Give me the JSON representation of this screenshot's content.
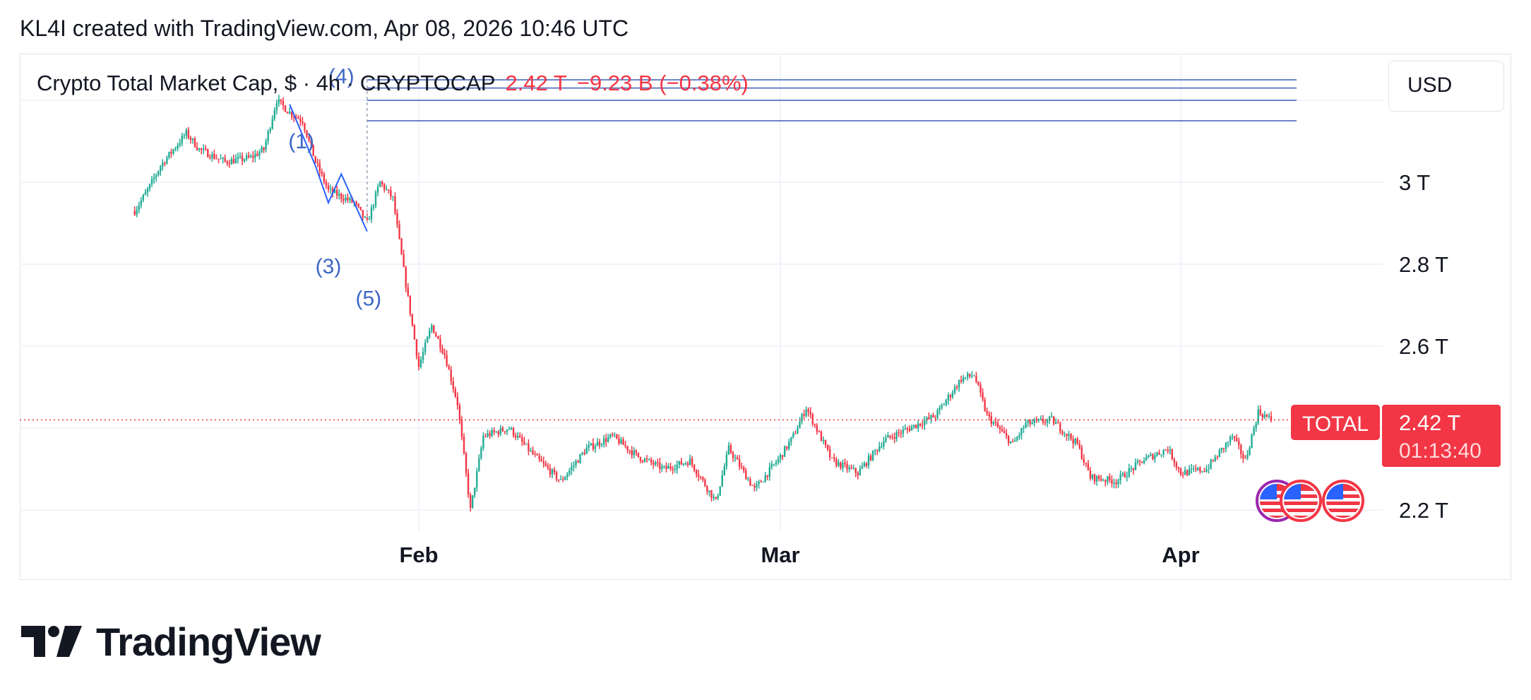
{
  "header": {
    "text": "KL4I created with TradingView.com, Apr 08, 2026 10:46 UTC"
  },
  "legend": {
    "title": "Crypto Total Market Cap, $ · 4h · CRYPTOCAP",
    "last": "2.42 T",
    "change": "−9.23 B (−0.38%)"
  },
  "currency_button": {
    "label": "USD"
  },
  "price_tag": {
    "symbol": "TOTAL",
    "price": "2.42 T",
    "countdown": "01:13:40"
  },
  "brand": {
    "name": "TradingView"
  },
  "colors": {
    "up": "#22ab94",
    "down": "#f23645",
    "wave": "#2962ff",
    "grid": "#f0f3fa",
    "text": "#131722"
  },
  "icons": [
    "us-flag-icon",
    "us-flag-icon",
    "us-flag-icon",
    "tradingview-logo-icon"
  ],
  "chart_data": {
    "type": "candlestick",
    "timeframe": "4h",
    "y_axis": {
      "ticks": [
        2.2,
        2.6,
        2.8,
        3.0
      ],
      "tick_labels": [
        "2.2 T",
        "2.6 T",
        "2.8 T",
        "3 T"
      ],
      "unit": "T",
      "range": [
        2.17,
        3.2
      ]
    },
    "x_axis": {
      "tick_labels": [
        "Feb",
        "Mar",
        "Apr"
      ],
      "ticks": [
        "2026-02-01",
        "2026-03-01",
        "2026-04-01"
      ]
    },
    "last_price": 2.42,
    "path_anchors": [
      [
        "2026-01-10",
        2.93
      ],
      [
        "2026-01-11",
        2.98
      ],
      [
        "2026-01-12",
        3.04
      ],
      [
        "2026-01-14",
        3.12
      ],
      [
        "2026-01-15",
        3.08
      ],
      [
        "2026-01-17",
        3.05
      ],
      [
        "2026-01-19",
        3.06
      ],
      [
        "2026-01-20",
        3.08
      ],
      [
        "2026-01-21",
        3.2
      ],
      [
        "2026-01-22",
        3.17
      ],
      [
        "2026-01-23",
        3.15
      ],
      [
        "2026-01-24",
        3.05
      ],
      [
        "2026-01-25",
        2.98
      ],
      [
        "2026-01-27",
        2.95
      ],
      [
        "2026-01-28",
        2.9
      ],
      [
        "2026-01-29",
        3.0
      ],
      [
        "2026-01-30",
        2.96
      ],
      [
        "2026-01-31",
        2.75
      ],
      [
        "2026-02-01",
        2.55
      ],
      [
        "2026-02-02",
        2.65
      ],
      [
        "2026-02-03",
        2.58
      ],
      [
        "2026-02-04",
        2.46
      ],
      [
        "2026-02-05",
        2.2
      ],
      [
        "2026-02-06",
        2.38
      ],
      [
        "2026-02-08",
        2.4
      ],
      [
        "2026-02-10",
        2.33
      ],
      [
        "2026-02-12",
        2.27
      ],
      [
        "2026-02-14",
        2.35
      ],
      [
        "2026-02-16",
        2.38
      ],
      [
        "2026-02-18",
        2.33
      ],
      [
        "2026-02-20",
        2.3
      ],
      [
        "2026-02-22",
        2.32
      ],
      [
        "2026-02-24",
        2.22
      ],
      [
        "2026-02-25",
        2.35
      ],
      [
        "2026-02-27",
        2.25
      ],
      [
        "2026-03-01",
        2.33
      ],
      [
        "2026-03-02",
        2.38
      ],
      [
        "2026-03-03",
        2.45
      ],
      [
        "2026-03-05",
        2.32
      ],
      [
        "2026-03-07",
        2.29
      ],
      [
        "2026-03-09",
        2.37
      ],
      [
        "2026-03-11",
        2.4
      ],
      [
        "2026-03-13",
        2.43
      ],
      [
        "2026-03-15",
        2.52
      ],
      [
        "2026-03-16",
        2.53
      ],
      [
        "2026-03-17",
        2.43
      ],
      [
        "2026-03-19",
        2.36
      ],
      [
        "2026-03-20",
        2.41
      ],
      [
        "2026-03-22",
        2.42
      ],
      [
        "2026-03-24",
        2.36
      ],
      [
        "2026-03-25",
        2.28
      ],
      [
        "2026-03-27",
        2.27
      ],
      [
        "2026-03-29",
        2.32
      ],
      [
        "2026-03-31",
        2.35
      ],
      [
        "2026-04-01",
        2.29
      ],
      [
        "2026-04-03",
        2.3
      ],
      [
        "2026-04-05",
        2.38
      ],
      [
        "2026-04-06",
        2.32
      ],
      [
        "2026-04-07",
        2.44
      ],
      [
        "2026-04-08",
        2.42
      ]
    ],
    "horizontal_lines": [
      3.25,
      3.23,
      3.2,
      3.15
    ],
    "elliott_wave": {
      "points": [
        [
          "2026-01-22",
          3.19
        ],
        [
          "2026-01-24",
          3.04
        ],
        [
          "2026-01-25",
          2.95
        ],
        [
          "2026-01-26",
          3.02
        ],
        [
          "2026-01-28",
          2.88
        ]
      ],
      "labels": [
        "(1)",
        "(3)",
        "(4)",
        "(5)"
      ]
    }
  }
}
